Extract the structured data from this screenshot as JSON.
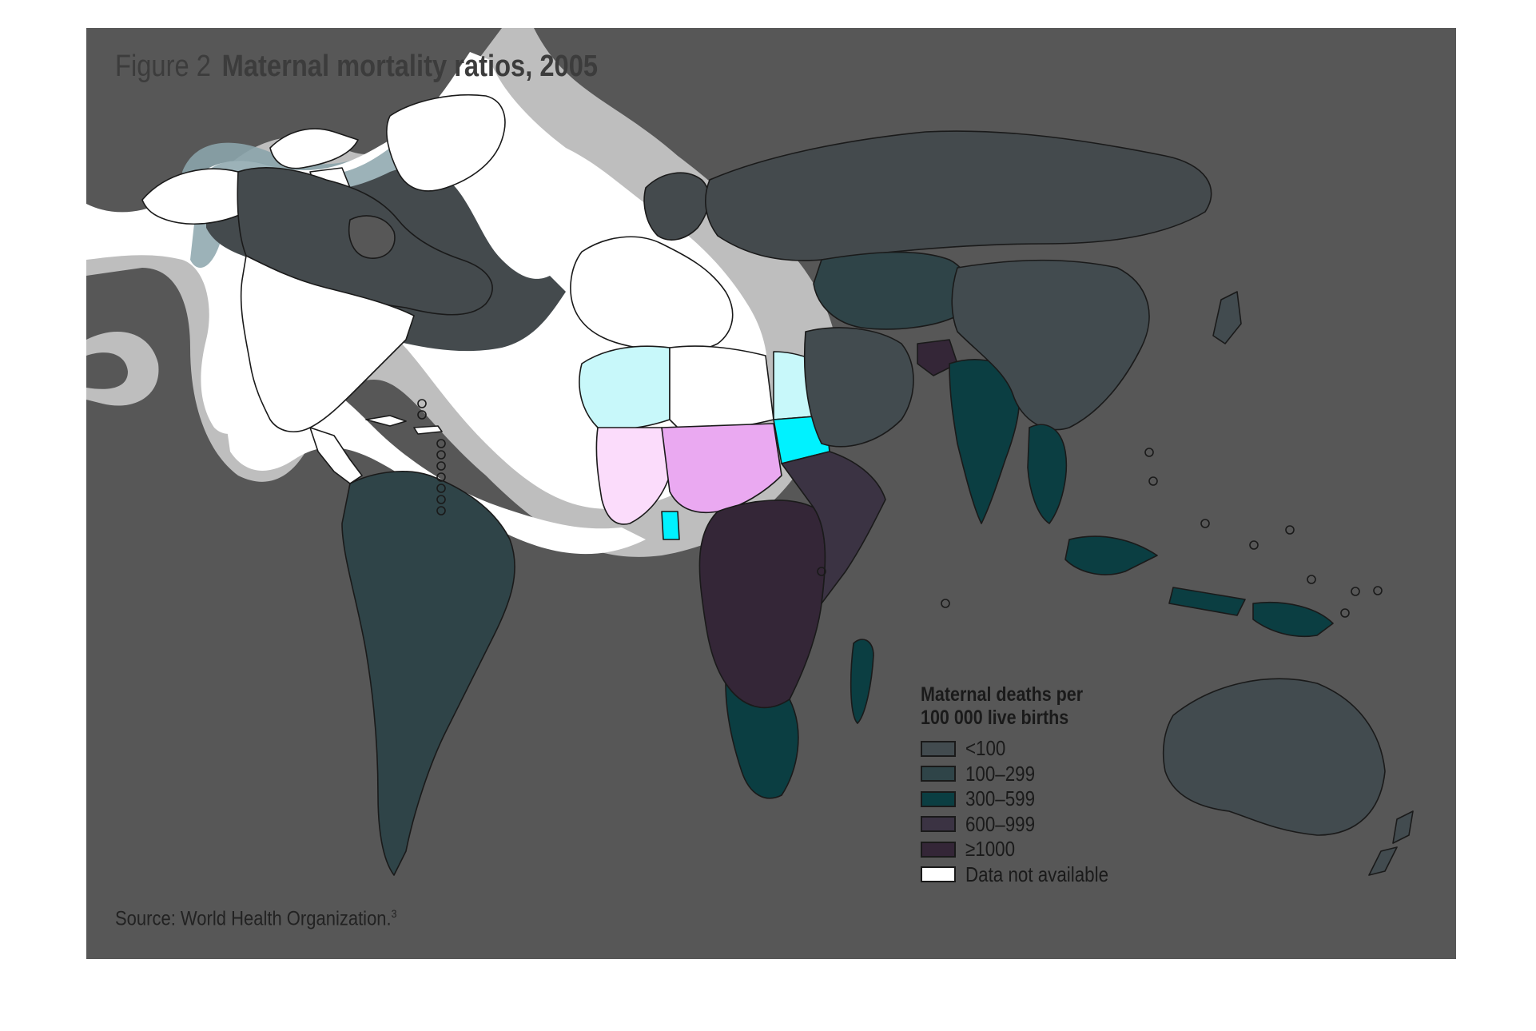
{
  "figure": {
    "prefix": "Figure 2",
    "title": "Maternal mortality ratios, 2005"
  },
  "legend": {
    "title_line1": "Maternal deaths per",
    "title_line2": "100 000 live births",
    "items": [
      {
        "label": "<100",
        "color": "#424b4f"
      },
      {
        "label": "100–299",
        "color": "#2f4448"
      },
      {
        "label": "300–599",
        "color": "#0b3e42"
      },
      {
        "label": "600–999",
        "color": "#3b3343"
      },
      {
        "label": "≥1000",
        "color": "#342637"
      },
      {
        "label": "Data not available",
        "color": "#ffffff"
      }
    ]
  },
  "source": {
    "text": "Source: World Health Organization.",
    "note": "3"
  },
  "colors": {
    "background": "#575757",
    "highlight_white": "#ffffff",
    "highlight_halo": "#bebebe",
    "highlight_teal": "#8ba4ab",
    "cyan_light": "#c8f8fa",
    "cyan_bright": "#00f2ff",
    "magenta_light": "#fbdcfb",
    "magenta_mid": "#eaa9f1"
  }
}
